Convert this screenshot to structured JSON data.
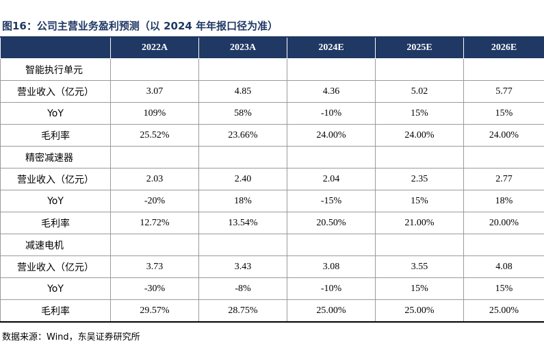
{
  "caption": "图16：公司主营业务盈利预测（以 2024 年年报口径为准）",
  "columns": [
    "2022A",
    "2023A",
    "2024E",
    "2025E",
    "2026E"
  ],
  "segments": [
    {
      "name": "智能执行单元",
      "rows": [
        {
          "label": "营业收入（亿元）",
          "values": [
            "3.07",
            "4.85",
            "4.36",
            "5.02",
            "5.77"
          ]
        },
        {
          "label": "YoY",
          "values": [
            "109%",
            "58%",
            "-10%",
            "15%",
            "15%"
          ]
        },
        {
          "label": "毛利率",
          "values": [
            "25.52%",
            "23.66%",
            "24.00%",
            "24.00%",
            "24.00%"
          ]
        }
      ]
    },
    {
      "name": "精密减速器",
      "rows": [
        {
          "label": "营业收入（亿元）",
          "values": [
            "2.03",
            "2.40",
            "2.04",
            "2.35",
            "2.77"
          ]
        },
        {
          "label": "YoY",
          "values": [
            "-20%",
            "18%",
            "-15%",
            "15%",
            "18%"
          ]
        },
        {
          "label": "毛利率",
          "values": [
            "12.72%",
            "13.54%",
            "20.50%",
            "21.00%",
            "20.00%"
          ]
        }
      ]
    },
    {
      "name": "减速电机",
      "rows": [
        {
          "label": "营业收入（亿元）",
          "values": [
            "3.73",
            "3.43",
            "3.08",
            "3.55",
            "4.08"
          ]
        },
        {
          "label": "YoY",
          "values": [
            "-30%",
            "-8%",
            "-10%",
            "15%",
            "15%"
          ]
        },
        {
          "label": "毛利率",
          "values": [
            "29.57%",
            "28.75%",
            "25.00%",
            "25.00%",
            "25.00%"
          ]
        }
      ]
    }
  ],
  "source": "数据来源：Wind，东吴证券研究所",
  "colors": {
    "header_bg": "#1f3864",
    "caption": "#1f3864"
  }
}
